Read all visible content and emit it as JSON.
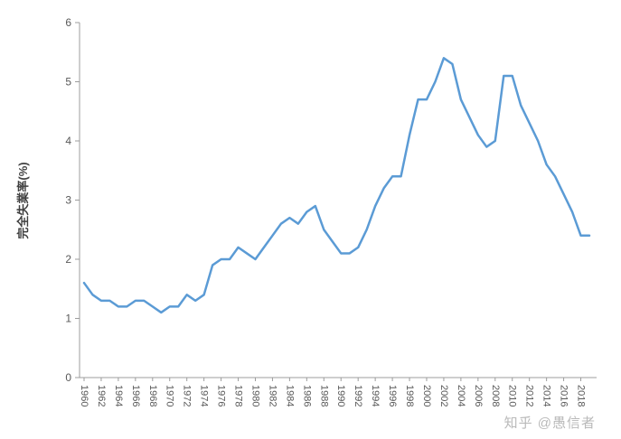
{
  "watermark": "知乎 @愚信者",
  "chart_data": {
    "type": "line",
    "title": "",
    "xlabel": "",
    "ylabel": "完全失業率(%)",
    "ylim": [
      0,
      6
    ],
    "yticks": [
      0,
      1,
      2,
      3,
      4,
      5,
      6
    ],
    "x_label_step": 2,
    "x_label_max": 2018,
    "grid": false,
    "legend": "none",
    "line_color": "#5B9BD5",
    "axis_color": "#9c9c9c",
    "text_color": "#595959",
    "x": [
      1960,
      1961,
      1962,
      1963,
      1964,
      1965,
      1966,
      1967,
      1968,
      1969,
      1970,
      1971,
      1972,
      1973,
      1974,
      1975,
      1976,
      1977,
      1978,
      1979,
      1980,
      1981,
      1982,
      1983,
      1984,
      1985,
      1986,
      1987,
      1988,
      1989,
      1990,
      1991,
      1992,
      1993,
      1994,
      1995,
      1996,
      1997,
      1998,
      1999,
      2000,
      2001,
      2002,
      2003,
      2004,
      2005,
      2006,
      2007,
      2008,
      2009,
      2010,
      2011,
      2012,
      2013,
      2014,
      2015,
      2016,
      2017,
      2018,
      2019
    ],
    "series": [
      {
        "name": "完全失業率",
        "values": [
          1.6,
          1.4,
          1.3,
          1.3,
          1.2,
          1.2,
          1.3,
          1.3,
          1.2,
          1.1,
          1.2,
          1.2,
          1.4,
          1.3,
          1.4,
          1.9,
          2.0,
          2.0,
          2.2,
          2.1,
          2.0,
          2.2,
          2.4,
          2.6,
          2.7,
          2.6,
          2.8,
          2.9,
          2.5,
          2.3,
          2.1,
          2.1,
          2.2,
          2.5,
          2.9,
          3.2,
          3.4,
          3.4,
          4.1,
          4.7,
          4.7,
          5.0,
          5.4,
          5.3,
          4.7,
          4.4,
          4.1,
          3.9,
          4.0,
          5.1,
          5.1,
          4.6,
          4.3,
          4.0,
          3.6,
          3.4,
          3.1,
          2.8,
          2.4,
          2.4
        ]
      }
    ]
  }
}
